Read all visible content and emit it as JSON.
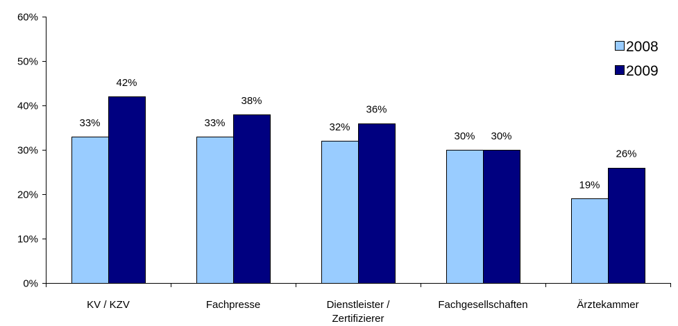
{
  "chart_data": {
    "type": "bar",
    "title": "",
    "xlabel": "",
    "ylabel": "",
    "categories": [
      [
        "KV / KZV"
      ],
      [
        "Fachpresse"
      ],
      [
        "Dienstleister /",
        "Zertifizierer"
      ],
      [
        "Fachgesellschaften"
      ],
      [
        "Ärztekammer"
      ]
    ],
    "series": [
      {
        "name": "2008",
        "color": "#99ccff",
        "values": [
          33,
          33,
          32,
          30,
          19
        ],
        "labels": [
          "33%",
          "33%",
          "32%",
          "30%",
          "19%"
        ]
      },
      {
        "name": "2009",
        "color": "#000080",
        "values": [
          42,
          38,
          36,
          30,
          26
        ],
        "labels": [
          "42%",
          "38%",
          "36%",
          "30%",
          "26%"
        ]
      }
    ],
    "ylim": [
      0,
      60
    ],
    "yticks": [
      0,
      10,
      20,
      30,
      40,
      50,
      60
    ],
    "ytick_labels": [
      "0%",
      "10%",
      "20%",
      "30%",
      "40%",
      "50%",
      "60%"
    ],
    "grid": false,
    "legend": "top-right"
  }
}
